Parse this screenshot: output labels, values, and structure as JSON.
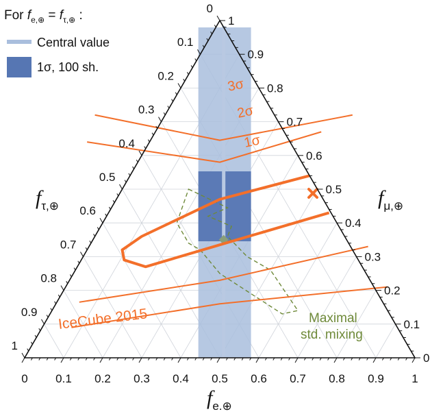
{
  "chart_data": {
    "type": "ternary",
    "header": {
      "prefix": "For ",
      "f": "f",
      "e_sub": "e,⊕",
      "eq": " = ",
      "tau_sub": "τ,⊕",
      "suffix": " :"
    },
    "axes": {
      "bottom": {
        "symbol": "f",
        "sub": "e.⊕",
        "ticks": [
          "0",
          "0.1",
          "0.2",
          "0.3",
          "0.4",
          "0.5",
          "0.6",
          "0.7",
          "0.8",
          "0.9",
          "1"
        ]
      },
      "right": {
        "symbol": "f",
        "sub": "μ,⊕",
        "ticks": [
          "0",
          "0.1",
          "0.2",
          "0.3",
          "0.4",
          "0.5",
          "0.6",
          "0.7",
          "0.8",
          "0.9",
          "1"
        ]
      },
      "left": {
        "symbol": "f",
        "sub": "τ,⊕",
        "ticks": [
          "0",
          "0.1",
          "0.2",
          "0.3",
          "0.4",
          "0.5",
          "0.6",
          "0.7",
          "0.8",
          "0.9",
          "1"
        ]
      }
    },
    "legend": [
      {
        "label": "Central value",
        "color": "#a9bedd"
      },
      {
        "label": "1σ, 100 sh.",
        "color": "#5676b3"
      }
    ],
    "central_value": {
      "f_e": 0.51
    },
    "band_1sigma_100sh": {
      "f_e_min": 0.445,
      "f_e_max": 0.58,
      "color": "#5676b3"
    },
    "band_outer": {
      "f_e_min": 0.445,
      "f_e_max": 0.58,
      "color": "#a9bedd"
    },
    "icecube_2015": {
      "label": "IceCube 2015",
      "color": "#f36f2a",
      "contours": [
        {
          "label": "1σ",
          "width": 4,
          "points": [
            [
              0.73,
              0.54
            ],
            [
              0.5,
              0.47
            ],
            [
              0.3,
              0.36
            ],
            [
              0.25,
              0.32
            ],
            [
              0.255,
              0.29
            ],
            [
              0.31,
              0.27
            ],
            [
              0.5,
              0.335
            ],
            [
              0.78,
              0.43
            ]
          ]
        },
        {
          "label": "2σ",
          "width": 2,
          "points": [
            [
              0.16,
              0.64
            ],
            [
              0.5,
              0.58
            ],
            [
              0.76,
              0.67
            ]
          ]
        },
        {
          "label": "3σ",
          "width": 2,
          "points": [
            [
              0.18,
              0.72
            ],
            [
              0.5,
              0.645
            ],
            [
              0.84,
              0.72
            ]
          ]
        },
        {
          "label": "",
          "width": 2,
          "points": [
            [
              0.14,
              0.165
            ],
            [
              0.5,
              0.23
            ],
            [
              0.88,
              0.33
            ]
          ]
        },
        {
          "label": "",
          "width": 2,
          "points": [
            [
              0.12,
              0.09
            ],
            [
              0.5,
              0.16
            ],
            [
              0.93,
              0.21
            ]
          ]
        }
      ]
    },
    "best_fit": {
      "f_e": 0.0,
      "f_mu": 0.5,
      "color": "#f36f2a",
      "marker": "x"
    },
    "std_mixing": {
      "label_lines": [
        "Maximal",
        "std. mixing"
      ],
      "color": "#6f8a3a",
      "center": [
        0.51,
        0.35
      ],
      "region": [
        [
          0.42,
          0.5
        ],
        [
          0.52,
          0.445
        ],
        [
          0.47,
          0.42
        ],
        [
          0.53,
          0.39
        ],
        [
          0.52,
          0.36
        ],
        [
          0.57,
          0.3
        ],
        [
          0.63,
          0.26
        ],
        [
          0.7,
          0.14
        ],
        [
          0.66,
          0.13
        ],
        [
          0.5,
          0.25
        ],
        [
          0.45,
          0.32
        ],
        [
          0.42,
          0.34
        ],
        [
          0.39,
          0.4
        ],
        [
          0.42,
          0.5
        ]
      ]
    }
  }
}
